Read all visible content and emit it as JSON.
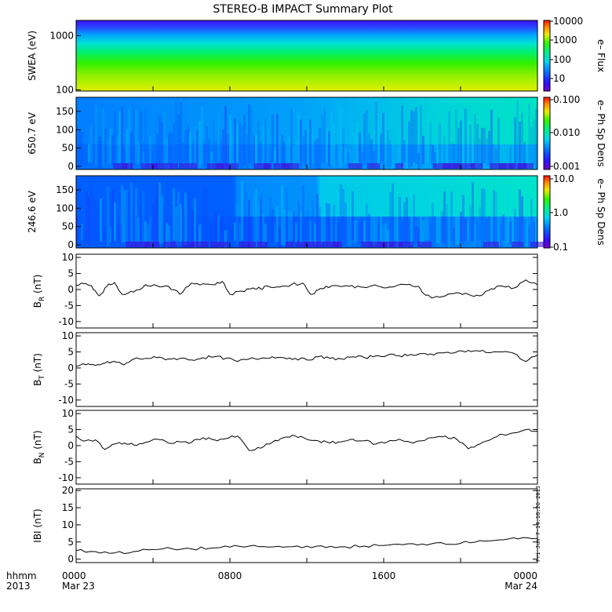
{
  "title": "STEREO-B IMPACT Summary Plot",
  "bottom_left_labels": [
    "hhmm",
    "2013"
  ],
  "time_ticks": [
    {
      "hhmm": "0000",
      "date": "Mar 23"
    },
    {
      "hhmm": "0800",
      "date": ""
    },
    {
      "hhmm": "1600",
      "date": ""
    },
    {
      "hhmm": "0000",
      "date": "Mar 24"
    }
  ],
  "timestamp": "Fri Jun  7 14:18:26 2013",
  "colors": {
    "trace": "#000000",
    "frame": "#000000"
  },
  "chart_data": [
    {
      "type": "heatmap",
      "ylabel": "SWEA (eV)",
      "yscale": "log",
      "ylim": [
        95,
        1900
      ],
      "yticks": [
        {
          "v": 1000,
          "label": "1000"
        },
        {
          "v": 100,
          "label": "100"
        }
      ],
      "colorbar": {
        "label": "e– Flux",
        "scale": "log",
        "range": [
          3,
          20000
        ],
        "ticks": [
          "10000",
          "1000",
          "100",
          "10"
        ]
      },
      "description": "flux decreases with energy; steady across day"
    },
    {
      "type": "heatmap",
      "ylabel": "650.7 eV",
      "ylim": [
        0,
        180
      ],
      "yticks": [
        "150",
        "100",
        "50",
        "0"
      ],
      "colorbar": {
        "label": "e– Ph Sp Dens",
        "scale": "log",
        "range": [
          0.001,
          0.1
        ],
        "ticks": [
          "0.100",
          "0.010",
          "0.001"
        ]
      }
    },
    {
      "type": "heatmap",
      "ylabel": "246.6 eV",
      "ylim": [
        0,
        180
      ],
      "yticks": [
        "150",
        "100",
        "50",
        "0"
      ],
      "colorbar": {
        "label": "e– Ph Sp Dens",
        "scale": "log",
        "range": [
          0.1,
          10
        ],
        "ticks": [
          "10.0",
          "1.0",
          "0.1"
        ]
      }
    },
    {
      "type": "line",
      "ylabel": "B",
      "ysub": "R",
      "yunit": " (nT)",
      "ylim": [
        -12,
        11
      ],
      "yticks": [
        "10",
        "5",
        "0",
        "-5",
        "-10"
      ],
      "x": [
        0,
        0.4,
        0.8,
        1.2,
        1.6,
        2.0,
        2.4,
        3.0,
        3.6,
        4.2,
        4.8,
        5.4,
        6.0,
        6.6,
        7.1,
        7.6,
        8.0,
        8.6,
        9.2,
        9.6,
        10.0,
        10.6,
        11.2,
        11.8,
        12.2,
        12.6,
        13.0,
        13.6,
        14.2,
        14.8,
        15.4,
        16.0,
        16.6,
        17.2,
        17.8,
        18.2,
        18.6,
        19.2,
        19.8,
        20.4,
        21.0,
        21.6,
        22.2,
        22.8,
        23.4,
        24.0
      ],
      "y": [
        1.5,
        1.8,
        1.2,
        -2.0,
        1.0,
        2.2,
        -1.5,
        -0.8,
        1.5,
        1.2,
        1.0,
        -1.5,
        2.0,
        1.8,
        1.5,
        2.5,
        -1.5,
        -0.5,
        0.5,
        0.2,
        1.0,
        0.8,
        1.5,
        2.0,
        -1.5,
        -0.2,
        1.0,
        1.2,
        1.0,
        0.8,
        1.2,
        0.5,
        1.0,
        1.5,
        1.0,
        -1.8,
        -2.5,
        -2.0,
        -1.0,
        -1.5,
        -2.0,
        0.2,
        1.0,
        0.5,
        3.0,
        1.5
      ]
    },
    {
      "type": "line",
      "ylabel": "B",
      "ysub": "T",
      "yunit": " (nT)",
      "ylim": [
        -12,
        11
      ],
      "yticks": [
        "10",
        "5",
        "0",
        "-5",
        "-10"
      ],
      "x": [
        0,
        0.5,
        1.0,
        1.5,
        2.0,
        2.5,
        3.0,
        3.6,
        4.2,
        4.8,
        5.4,
        6.0,
        6.6,
        7.2,
        7.8,
        8.4,
        9.0,
        9.6,
        10.2,
        10.8,
        11.4,
        12.0,
        12.6,
        13.2,
        13.8,
        14.4,
        15.0,
        15.6,
        16.2,
        16.8,
        17.4,
        18.0,
        18.6,
        19.2,
        19.8,
        20.4,
        21.0,
        21.6,
        22.2,
        22.8,
        23.4,
        24.0
      ],
      "y": [
        0.5,
        1.0,
        0.8,
        1.5,
        2.0,
        1.0,
        2.8,
        3.0,
        3.2,
        2.8,
        3.0,
        2.5,
        3.2,
        3.5,
        3.0,
        2.0,
        2.8,
        3.0,
        3.5,
        3.2,
        3.0,
        2.5,
        3.5,
        3.0,
        2.8,
        3.5,
        3.2,
        3.8,
        4.0,
        3.8,
        4.2,
        4.5,
        4.0,
        4.8,
        5.0,
        5.5,
        5.2,
        4.8,
        5.0,
        4.5,
        2.0,
        4.0
      ]
    },
    {
      "type": "line",
      "ylabel": "B",
      "ysub": "N",
      "yunit": " (nT)",
      "ylim": [
        -12,
        11
      ],
      "yticks": [
        "10",
        "5",
        "0",
        "-5",
        "-10"
      ],
      "x": [
        0,
        0.5,
        1.0,
        1.5,
        2.0,
        2.5,
        3.0,
        3.6,
        4.2,
        4.8,
        5.4,
        6.0,
        6.6,
        7.2,
        7.8,
        8.4,
        9.0,
        9.6,
        10.2,
        10.8,
        11.4,
        12.0,
        12.6,
        13.2,
        13.8,
        14.4,
        15.0,
        15.6,
        16.2,
        16.8,
        17.4,
        18.0,
        18.6,
        19.2,
        19.8,
        20.4,
        21.0,
        21.6,
        22.2,
        22.8,
        23.4,
        24.0
      ],
      "y": [
        3.0,
        1.5,
        1.8,
        -1.2,
        0.5,
        0.8,
        0.2,
        1.0,
        2.0,
        0.8,
        1.2,
        1.0,
        2.5,
        1.8,
        2.2,
        3.0,
        -1.5,
        -0.8,
        1.0,
        2.5,
        3.0,
        2.0,
        1.5,
        0.8,
        1.2,
        2.0,
        1.5,
        0.5,
        1.2,
        2.0,
        1.0,
        1.5,
        2.5,
        3.0,
        2.0,
        -1.0,
        0.5,
        2.0,
        3.5,
        4.0,
        5.0,
        4.5
      ]
    },
    {
      "type": "line",
      "ylabel": "IBI",
      "ysub": "",
      "yunit": " (nT)",
      "ylim": [
        -1,
        20.5
      ],
      "yticks": [
        "20",
        "15",
        "10",
        "5",
        "0"
      ],
      "x": [
        0,
        1,
        2,
        3,
        4,
        5,
        6,
        7,
        8,
        9,
        10,
        11,
        12,
        13,
        14,
        15,
        16,
        17,
        18,
        19,
        20,
        21,
        22,
        23,
        24
      ],
      "y": [
        2.5,
        2.2,
        1.8,
        2.2,
        2.8,
        3.0,
        3.0,
        3.2,
        3.5,
        3.8,
        3.5,
        3.6,
        3.8,
        3.4,
        3.6,
        3.8,
        4.0,
        4.2,
        4.4,
        4.8,
        4.6,
        5.4,
        5.6,
        5.9,
        6.1
      ]
    }
  ]
}
